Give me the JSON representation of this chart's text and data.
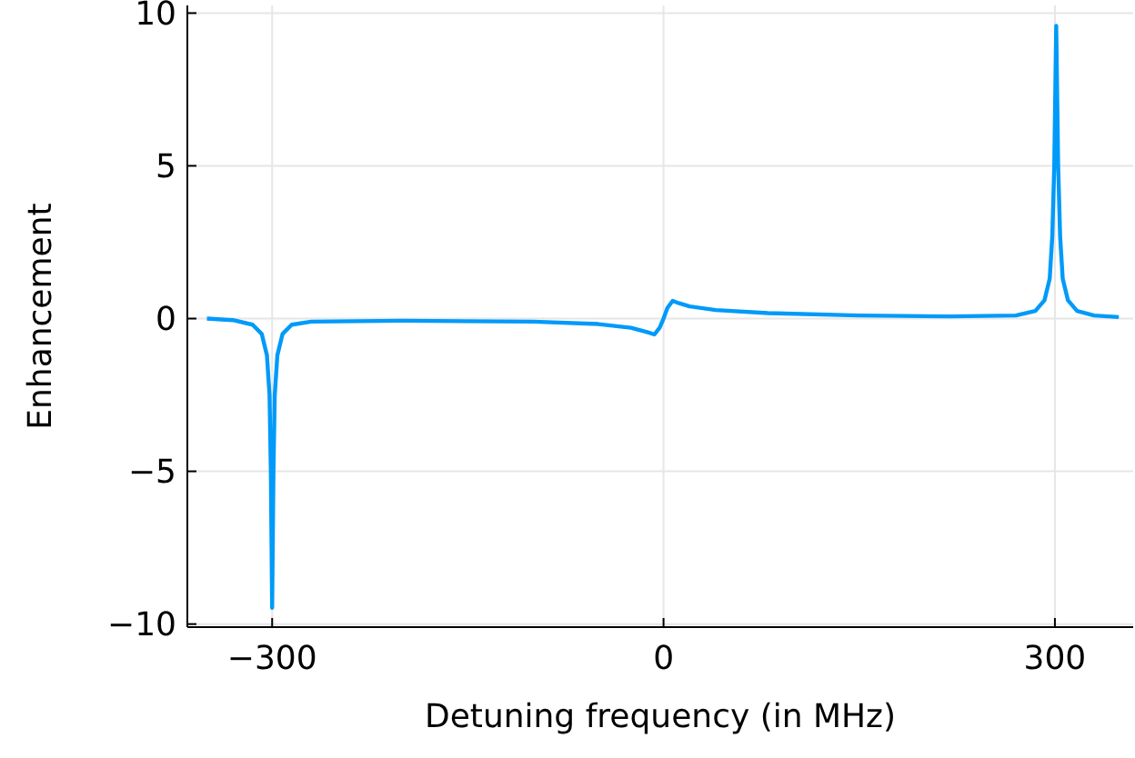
{
  "chart_data": {
    "type": "line",
    "xlabel": "Detuning frequency (in MHz)",
    "ylabel": "Enhancement",
    "xlim": [
      -365,
      360
    ],
    "ylim": [
      -10.1,
      10.25
    ],
    "xticks": [
      {
        "value": -300,
        "label": "−300"
      },
      0,
      300
    ],
    "yticks": [
      {
        "value": -10,
        "label": "−10"
      },
      {
        "value": -5,
        "label": "−5"
      },
      0,
      5,
      10
    ],
    "grid": true,
    "series": [
      {
        "color": "#009af9",
        "x": [
          -350,
          -330,
          -315,
          -308,
          -304,
          -302,
          -301,
          -300,
          -299,
          -298,
          -296,
          -292,
          -285,
          -270,
          -200,
          -100,
          -50,
          -25,
          -12,
          -7,
          -3,
          0,
          3,
          7,
          12,
          20,
          40,
          80,
          150,
          220,
          270,
          285,
          292,
          296,
          298,
          299.5,
          301,
          302.5,
          304,
          306,
          310,
          317,
          330,
          349
        ],
        "values": [
          0,
          -0.05,
          -0.2,
          -0.5,
          -1.2,
          -2.5,
          -5,
          -9.47,
          -5,
          -2.5,
          -1.2,
          -0.5,
          -0.2,
          -0.1,
          -0.07,
          -0.1,
          -0.18,
          -0.3,
          -0.45,
          -0.52,
          -0.3,
          0,
          0.35,
          0.58,
          0.5,
          0.4,
          0.28,
          0.18,
          0.1,
          0.07,
          0.1,
          0.25,
          0.6,
          1.3,
          2.7,
          5,
          9.58,
          5,
          2.7,
          1.3,
          0.6,
          0.25,
          0.1,
          0.05
        ]
      }
    ]
  }
}
